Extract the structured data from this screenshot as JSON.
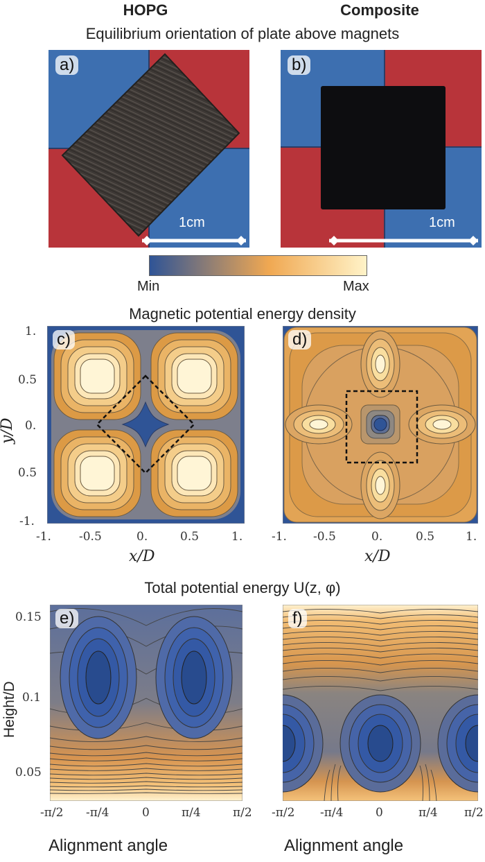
{
  "columns": {
    "left": "HOPG",
    "right": "Composite"
  },
  "section_titles": {
    "photos": "Equilibrium orientation of plate above magnets",
    "density": "Magnetic potential energy density",
    "total": "Total potential energy U(z, φ)"
  },
  "panels": {
    "a": "a)",
    "b": "b)",
    "c": "c)",
    "d": "d)",
    "e": "e)",
    "f": "f)"
  },
  "scale_bar": "1cm",
  "colorbar": {
    "min": "Min",
    "max": "Max",
    "colors": [
      "#2f5496",
      "#f0a852",
      "#fff3c8"
    ]
  },
  "density_axes": {
    "xlabel": "x/D",
    "ylabel": "y/D",
    "xticks": [
      "-1.",
      "-0.5",
      "0.",
      "0.5",
      "1."
    ],
    "yticks": [
      "1.",
      "0.5",
      "0.",
      "0.5",
      "-1."
    ]
  },
  "energy_axes": {
    "xlabel": "Alignment angle",
    "ylabel": "Height/D",
    "yticks": [
      "0.15",
      "0.1",
      "0.05"
    ],
    "xticks": [
      "-π/2",
      "-π/4",
      "0",
      "π/4",
      "π/2"
    ]
  },
  "chart_data": [
    {
      "type": "heatmap",
      "panel": "c",
      "xlabel": "x/D",
      "ylabel": "y/D",
      "xlim": [
        -1,
        1
      ],
      "ylim": [
        -1,
        1
      ]
    },
    {
      "type": "heatmap",
      "panel": "d",
      "xlabel": "x/D",
      "xlim": [
        -1,
        1
      ],
      "ylim": [
        -1,
        1
      ]
    },
    {
      "type": "heatmap",
      "panel": "e",
      "xlabel": "Alignment angle",
      "ylabel": "Height/D",
      "ylim": [
        0.03,
        0.16
      ]
    },
    {
      "type": "heatmap",
      "panel": "f",
      "xlabel": "Alignment angle",
      "ylim": [
        0.03,
        0.16
      ]
    }
  ]
}
